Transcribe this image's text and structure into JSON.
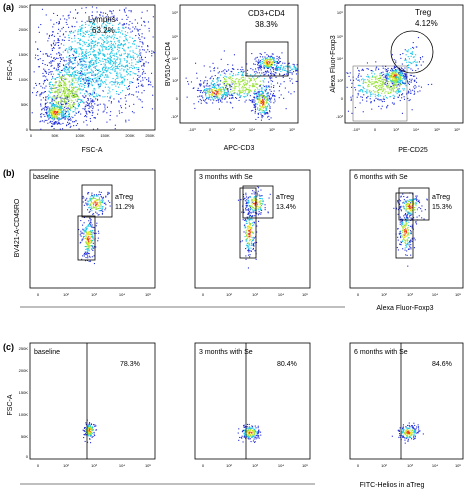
{
  "figure": {
    "panel_labels": [
      "(a)",
      "(b)",
      "(c)"
    ],
    "row_b_xlabel": "Alexa Fluor-Foxp3",
    "row_c_xlabel": "FITC-Helios in aTreg"
  },
  "colors": {
    "density_low": "#1f2bd8",
    "density_mid1": "#19c6e8",
    "density_mid2": "#9be33a",
    "density_high": "#f2e21a",
    "density_peak": "#ee3b1c",
    "axis_frame": "#000000"
  },
  "ticks": {
    "linear": [
      "0",
      "50K",
      "100K",
      "150K",
      "200K",
      "250K"
    ],
    "log": [
      "0",
      "10²",
      "10³",
      "10⁴",
      "10⁵"
    ],
    "log_full": [
      "-10³",
      "0",
      "10³",
      "10⁴",
      "10⁵",
      "10⁶"
    ]
  },
  "chart_data": [
    {
      "type": "scatter",
      "panel": "a",
      "position": "left",
      "xlabel": "FSC-A",
      "ylabel": "FSC-A",
      "xscale": "linear",
      "yscale": "linear",
      "xlim": [
        0,
        262144
      ],
      "ylim": [
        0,
        262144
      ],
      "gates": [
        {
          "label": "Lymphs",
          "percent": "63.2%"
        }
      ]
    },
    {
      "type": "scatter",
      "panel": "a",
      "position": "middle",
      "xlabel": "APC-CD3",
      "ylabel": "BV510-A-CD4",
      "xscale": "log",
      "yscale": "log",
      "gates": [
        {
          "label": "CD3+CD4",
          "percent": "38.3%"
        }
      ]
    },
    {
      "type": "scatter",
      "panel": "a",
      "position": "right",
      "xlabel": "PE-CD25",
      "ylabel": "Alexa Fluor-Foxp3",
      "xscale": "log",
      "yscale": "log",
      "gates": [
        {
          "label": "Treg",
          "percent": "4.12%"
        }
      ]
    },
    {
      "type": "scatter",
      "panel": "b",
      "position": "left",
      "title": "baseline",
      "ylabel": "BV421-A-CD45RO",
      "xscale": "log",
      "yscale": "log",
      "gates": [
        {
          "label": "aTreg",
          "percent": "11.2%"
        }
      ]
    },
    {
      "type": "scatter",
      "panel": "b",
      "position": "middle",
      "title": "3 months with Se",
      "xscale": "log",
      "yscale": "log",
      "gates": [
        {
          "label": "aTreg",
          "percent": "13.4%"
        }
      ]
    },
    {
      "type": "scatter",
      "panel": "b",
      "position": "right",
      "title": "6 months with Se",
      "xscale": "log",
      "yscale": "log",
      "gates": [
        {
          "label": "aTreg",
          "percent": "15.3%"
        }
      ]
    },
    {
      "type": "scatter",
      "panel": "c",
      "position": "left",
      "title": "baseline",
      "ylabel": "FSC-A",
      "xscale": "log",
      "yscale": "linear",
      "gates": [
        {
          "label": "",
          "percent": "78.3%"
        }
      ]
    },
    {
      "type": "scatter",
      "panel": "c",
      "position": "middle",
      "title": "3 months with Se",
      "xscale": "log",
      "yscale": "linear",
      "gates": [
        {
          "label": "",
          "percent": "80.4%"
        }
      ]
    },
    {
      "type": "scatter",
      "panel": "c",
      "position": "right",
      "title": "6 months with Se",
      "xscale": "log",
      "yscale": "linear",
      "gates": [
        {
          "label": "",
          "percent": "84.6%"
        }
      ]
    }
  ]
}
